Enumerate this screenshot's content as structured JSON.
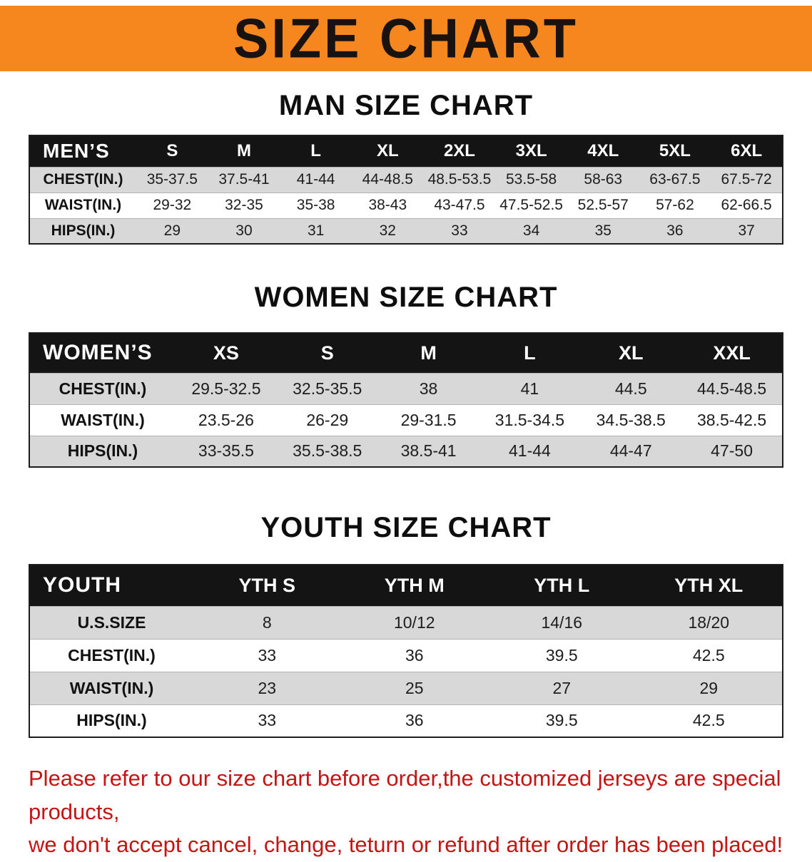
{
  "banner": {
    "title": "SIZE CHART",
    "bg": "#f6871e",
    "text_color": "#181210"
  },
  "sections": [
    {
      "id": "mens",
      "heading": "MAN SIZE CHART",
      "table": {
        "header": [
          "MEN’S",
          "S",
          "M",
          "L",
          "XL",
          "2XL",
          "3XL",
          "4XL",
          "5XL",
          "6XL"
        ],
        "rows": [
          {
            "label": "CHEST(IN.)",
            "values": [
              "35-37.5",
              "37.5-41",
              "41-44",
              "44-48.5",
              "48.5-53.5",
              "53.5-58",
              "58-63",
              "63-67.5",
              "67.5-72"
            ]
          },
          {
            "label": "WAIST(IN.)",
            "values": [
              "29-32",
              "32-35",
              "35-38",
              "38-43",
              "43-47.5",
              "47.5-52.5",
              "52.5-57",
              "57-62",
              "62-66.5"
            ]
          },
          {
            "label": "HIPS(IN.)",
            "values": [
              "29",
              "30",
              "31",
              "32",
              "33",
              "34",
              "35",
              "36",
              "37"
            ]
          }
        ]
      }
    },
    {
      "id": "womens",
      "heading": "WOMEN SIZE CHART",
      "table": {
        "header": [
          "WOMEN’S",
          "XS",
          "S",
          "M",
          "L",
          "XL",
          "XXL"
        ],
        "rows": [
          {
            "label": "CHEST(IN.)",
            "values": [
              "29.5-32.5",
              "32.5-35.5",
              "38",
              "41",
              "44.5",
              "44.5-48.5"
            ]
          },
          {
            "label": "WAIST(IN.)",
            "values": [
              "23.5-26",
              "26-29",
              "29-31.5",
              "31.5-34.5",
              "34.5-38.5",
              "38.5-42.5"
            ]
          },
          {
            "label": "HIPS(IN.)",
            "values": [
              "33-35.5",
              "35.5-38.5",
              "38.5-41",
              "41-44",
              "44-47",
              "47-50"
            ]
          }
        ]
      }
    },
    {
      "id": "youth",
      "heading": "YOUTH SIZE CHART",
      "table": {
        "header": [
          "YOUTH",
          "YTH S",
          "YTH M",
          "YTH L",
          "YTH XL"
        ],
        "rows": [
          {
            "label": "U.S.SIZE",
            "values": [
              "8",
              "10/12",
              "14/16",
              "18/20"
            ]
          },
          {
            "label": "CHEST(IN.)",
            "values": [
              "33",
              "36",
              "39.5",
              "42.5"
            ]
          },
          {
            "label": "WAIST(IN.)",
            "values": [
              "23",
              "25",
              "27",
              "29"
            ]
          },
          {
            "label": "HIPS(IN.)",
            "values": [
              "33",
              "36",
              "39.5",
              "42.5"
            ]
          }
        ]
      }
    }
  ],
  "footer_note": {
    "line1": "Please refer to our size chart before order,the customized jerseys are special products,",
    "line2": "we don't accept cancel, change, teturn or refund after order has been placed!",
    "color": "#c41414"
  }
}
